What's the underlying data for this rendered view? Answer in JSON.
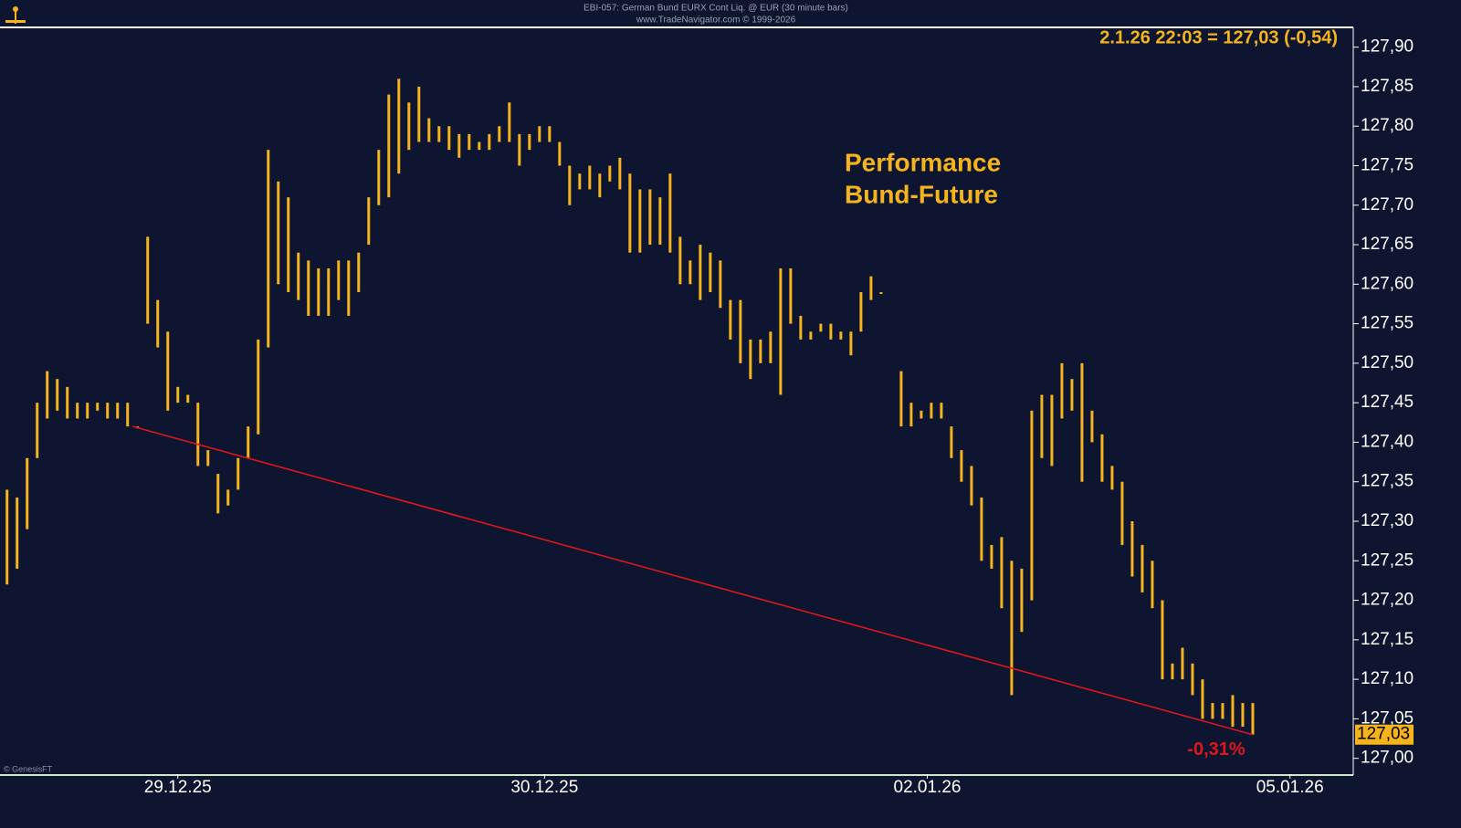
{
  "chart_data": {
    "type": "range-bar",
    "header_line1": "EBI-057: German Bund EURX Cont Liq. @ EUR (30 minute bars)",
    "header_line2": "www.TradeNavigator.com © 1999-2026",
    "quote": "2.1.26 22:03 = 127,03 (-0,54)",
    "annotation": [
      "Performance",
      "Bund-Future"
    ],
    "footer": "© GenesisFT",
    "color": "#f5b41e",
    "x": [
      0,
      1,
      2,
      3,
      4,
      5,
      6,
      7,
      8,
      9,
      10,
      11,
      12,
      13,
      14,
      15,
      16,
      17,
      18,
      19,
      20,
      21,
      22,
      23,
      24,
      25,
      26,
      27,
      28,
      29,
      30,
      31,
      32,
      33,
      34,
      35,
      36,
      37,
      38,
      39,
      40,
      41,
      42,
      43,
      44,
      45,
      46,
      47,
      48,
      49,
      50,
      51,
      52,
      53,
      54,
      55,
      56,
      57,
      58,
      59,
      60,
      61,
      62,
      63,
      64,
      65,
      66,
      67,
      68,
      69,
      70,
      71,
      72,
      73,
      74,
      75,
      76,
      77,
      78,
      79,
      80,
      81,
      82,
      83,
      84,
      85,
      86,
      87,
      88,
      89,
      90,
      91,
      92,
      93,
      94,
      95,
      96,
      97,
      98,
      99,
      100,
      101,
      102,
      103,
      104,
      105,
      106,
      107,
      108,
      109,
      110,
      111,
      112,
      113,
      114,
      115,
      116,
      117,
      118,
      119,
      120,
      121,
      122,
      123,
      124
    ],
    "series": [
      {
        "name": "High",
        "values": [
          127.34,
          127.33,
          127.38,
          127.45,
          127.49,
          127.48,
          127.47,
          127.45,
          127.45,
          127.45,
          127.45,
          127.45,
          127.45,
          127.42,
          127.66,
          127.58,
          127.54,
          127.47,
          127.46,
          127.45,
          127.39,
          127.36,
          127.34,
          127.38,
          127.42,
          127.53,
          127.77,
          127.73,
          127.71,
          127.64,
          127.63,
          127.62,
          127.62,
          127.63,
          127.63,
          127.64,
          127.71,
          127.77,
          127.84,
          127.86,
          127.83,
          127.85,
          127.81,
          127.8,
          127.8,
          127.79,
          127.79,
          127.78,
          127.79,
          127.8,
          127.83,
          127.79,
          127.79,
          127.8,
          127.8,
          127.78,
          127.75,
          127.74,
          127.75,
          127.74,
          127.75,
          127.76,
          127.74,
          127.72,
          127.72,
          127.71,
          127.74,
          127.66,
          127.63,
          127.65,
          127.64,
          127.63,
          127.58,
          127.58,
          127.53,
          127.53,
          127.54,
          127.62,
          127.62,
          127.56,
          127.54,
          127.55,
          127.55,
          127.54,
          127.54,
          127.59,
          127.61,
          127.59,
          null,
          127.49,
          127.45,
          127.44,
          127.45,
          127.45,
          127.42,
          127.39,
          127.37,
          127.33,
          127.27,
          127.28,
          127.25,
          127.24,
          127.44,
          127.46,
          127.46,
          127.5,
          127.48,
          127.5,
          127.44,
          127.41,
          127.37,
          127.35,
          127.3,
          127.27,
          127.25,
          127.2,
          127.12,
          127.14,
          127.12,
          127.1,
          127.07,
          127.07,
          127.08,
          127.07,
          127.07
        ]
      },
      {
        "name": "Low",
        "values": [
          127.22,
          127.24,
          127.29,
          127.38,
          127.43,
          127.44,
          127.43,
          127.43,
          127.43,
          127.44,
          127.43,
          127.43,
          127.42,
          127.42,
          127.55,
          127.52,
          127.44,
          127.45,
          127.45,
          127.37,
          127.37,
          127.31,
          127.32,
          127.34,
          127.38,
          127.41,
          127.52,
          127.6,
          127.59,
          127.58,
          127.56,
          127.56,
          127.56,
          127.58,
          127.56,
          127.59,
          127.65,
          127.7,
          127.71,
          127.74,
          127.77,
          127.78,
          127.78,
          127.78,
          127.77,
          127.76,
          127.77,
          127.77,
          127.77,
          127.78,
          127.78,
          127.75,
          127.77,
          127.78,
          127.78,
          127.75,
          127.7,
          127.72,
          127.72,
          127.71,
          127.73,
          127.72,
          127.64,
          127.64,
          127.65,
          127.65,
          127.64,
          127.6,
          127.6,
          127.58,
          127.59,
          127.57,
          127.53,
          127.5,
          127.48,
          127.5,
          127.5,
          127.46,
          127.55,
          127.53,
          127.53,
          127.54,
          127.53,
          127.53,
          127.51,
          127.54,
          127.58,
          127.59,
          null,
          127.42,
          127.42,
          127.43,
          127.43,
          127.43,
          127.38,
          127.35,
          127.32,
          127.25,
          127.24,
          127.19,
          127.08,
          127.16,
          127.2,
          127.38,
          127.37,
          127.43,
          127.44,
          127.35,
          127.4,
          127.35,
          127.34,
          127.27,
          127.23,
          127.21,
          127.19,
          127.1,
          127.1,
          127.1,
          127.08,
          127.05,
          127.05,
          127.05,
          127.04,
          127.04,
          127.03
        ]
      }
    ],
    "last_price": {
      "value": 127.03,
      "label": "127,03"
    },
    "trendline": {
      "x": [
        12.5,
        124
      ],
      "y": [
        127.42,
        127.03
      ],
      "color": "#e0161b",
      "label": "-0,31%"
    },
    "xlim": [
      -0.7,
      134
    ],
    "xticks": [
      {
        "value": 17,
        "label": "29.12.25"
      },
      {
        "value": 53.5,
        "label": "30.12.25"
      },
      {
        "value": 91.6,
        "label": "02.01.26"
      },
      {
        "value": 127.7,
        "label": "05.01.26"
      }
    ],
    "ylim": [
      126.98,
      127.925
    ],
    "yticks": [
      {
        "value": 127.0,
        "label": "127,00"
      },
      {
        "value": 127.05,
        "label": "127,05"
      },
      {
        "value": 127.1,
        "label": "127,10"
      },
      {
        "value": 127.15,
        "label": "127,15"
      },
      {
        "value": 127.2,
        "label": "127,20"
      },
      {
        "value": 127.25,
        "label": "127,25"
      },
      {
        "value": 127.3,
        "label": "127,30"
      },
      {
        "value": 127.35,
        "label": "127,35"
      },
      {
        "value": 127.4,
        "label": "127,40"
      },
      {
        "value": 127.45,
        "label": "127,45"
      },
      {
        "value": 127.5,
        "label": "127,50"
      },
      {
        "value": 127.55,
        "label": "127,55"
      },
      {
        "value": 127.6,
        "label": "127,60"
      },
      {
        "value": 127.65,
        "label": "127,65"
      },
      {
        "value": 127.7,
        "label": "127,70"
      },
      {
        "value": 127.75,
        "label": "127,75"
      },
      {
        "value": 127.8,
        "label": "127,80"
      },
      {
        "value": 127.85,
        "label": "127,85"
      },
      {
        "value": 127.9,
        "label": "127,90"
      }
    ]
  }
}
